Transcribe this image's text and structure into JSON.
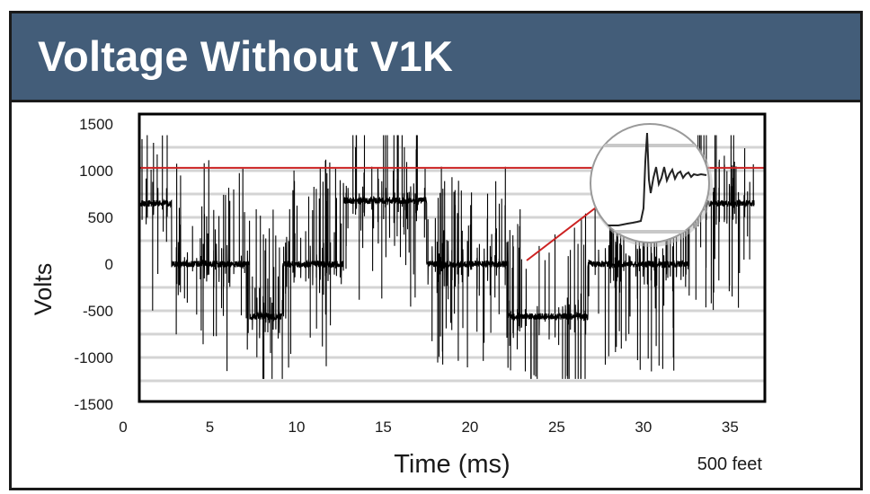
{
  "title": "Voltage Without V1K",
  "chart_data": {
    "type": "line",
    "title": "Voltage Without V1K",
    "xlabel": "Time (ms)",
    "ylabel": "Volts",
    "xlim": [
      0,
      36.4
    ],
    "ylim": [
      -1500,
      1500
    ],
    "x_ticks": [
      "0",
      "5",
      "10",
      "15",
      "20",
      "25",
      "30",
      "35"
    ],
    "x_tick_values": [
      0,
      5,
      10,
      15,
      20,
      25,
      30,
      35
    ],
    "y_ticks": [
      "1500",
      "1000",
      "500",
      "0",
      "-500",
      "-1000",
      "-1500"
    ],
    "y_tick_values": [
      1500,
      1000,
      500,
      0,
      -500,
      -1000,
      -1500
    ],
    "grid": true,
    "reference_line": {
      "y": 1030,
      "color": "#cc2222"
    },
    "annotation": "500 feet",
    "trace_color": "#000000",
    "segments": [
      {
        "t_start": 0.9,
        "t_end": 2.8,
        "level": 650
      },
      {
        "t_start": 2.8,
        "t_end": 7.3,
        "level": 0
      },
      {
        "t_start": 7.3,
        "t_end": 9.2,
        "level": -560
      },
      {
        "t_start": 9.2,
        "t_end": 12.7,
        "level": 0
      },
      {
        "t_start": 12.7,
        "t_end": 17.5,
        "level": 680
      },
      {
        "t_start": 17.5,
        "t_end": 22.2,
        "level": 0
      },
      {
        "t_start": 22.2,
        "t_end": 26.8,
        "level": -560
      },
      {
        "t_start": 26.8,
        "t_end": 32.6,
        "level": 0
      },
      {
        "t_start": 32.6,
        "t_end": 36.4,
        "level": 650
      }
    ],
    "max_spike_volts": 1380,
    "min_spike_volts": -1230,
    "inset": "zoomed transient spike showing overshoot and ringing"
  }
}
